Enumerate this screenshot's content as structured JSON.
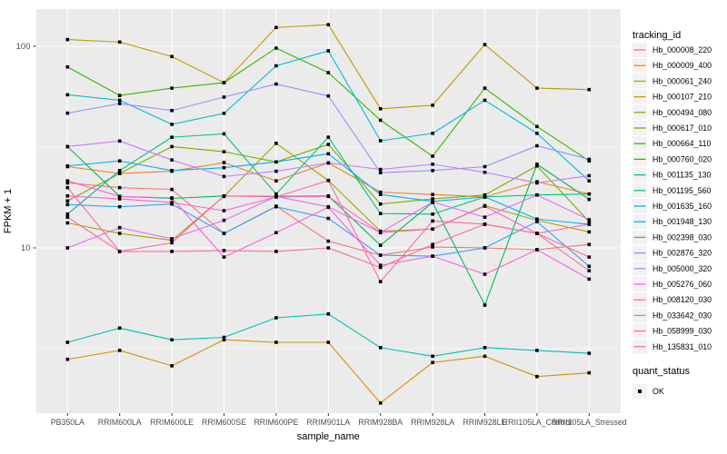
{
  "chart_data": {
    "type": "line",
    "title": "",
    "xlabel": "sample_name",
    "ylabel": "FPKM + 1",
    "y_scale": "log10",
    "y_tick_labels": [
      "100",
      "10"
    ],
    "y_ticks": [
      100,
      10
    ],
    "y_minor_ticks": [
      31.62,
      3.162
    ],
    "ylim": [
      1.5,
      153
    ],
    "grid": true,
    "legend_position": "right",
    "legend_title": "tracking_id",
    "legend2_title": "quant_status",
    "legend2_items": [
      {
        "label": "OK",
        "marker": "square",
        "color": "#000000"
      }
    ],
    "panel_bg": "#EBEBEB",
    "grid_color": "#FFFFFF",
    "axis_text_color": "#4D4D4D",
    "point_color": "#000000",
    "point_shape": "square",
    "categories": [
      "PB350LA",
      "RRIM600LA",
      "RRIM600LE",
      "RRIM600SE",
      "RRIM600PE",
      "RRIM901LA",
      "RRIM928BA",
      "RRIM928LA",
      "RRIM928LE",
      "RRII105LA_Control",
      "RRII105LA_Stressed"
    ],
    "series": [
      {
        "name": "Hb_000008_220",
        "color": "#F8766D",
        "values": [
          21.0,
          19.9,
          19.5,
          11.8,
          16.1,
          10.8,
          9.2,
          10.1,
          10.0,
          9.8,
          10.4
        ]
      },
      {
        "name": "Hb_000009_400",
        "color": "#EA8331",
        "values": [
          25.3,
          23.4,
          24.0,
          26.5,
          21.5,
          26.4,
          18.9,
          18.4,
          17.9,
          21.3,
          18.5
        ]
      },
      {
        "name": "Hb_000061_240",
        "color": "#D89000",
        "values": [
          2.8,
          3.1,
          2.6,
          3.5,
          3.4,
          3.4,
          1.7,
          2.7,
          2.9,
          2.3,
          2.4
        ]
      },
      {
        "name": "Hb_000107_210",
        "color": "#C09B00",
        "values": [
          108,
          105,
          89,
          66,
          124,
          128,
          49,
          51,
          102,
          62,
          61
        ]
      },
      {
        "name": "Hb_000494_080",
        "color": "#A3A500",
        "values": [
          13.3,
          11.8,
          10.9,
          18.0,
          33.0,
          21.6,
          12.1,
          12.4,
          16.2,
          13.7,
          12.0
        ]
      },
      {
        "name": "Hb_000617_010",
        "color": "#7CAE00",
        "values": [
          17.1,
          23.4,
          31.8,
          30.0,
          26.7,
          32.6,
          16.5,
          17.5,
          18.3,
          25.5,
          13.5
        ]
      },
      {
        "name": "Hb_000664_110",
        "color": "#39B600",
        "values": [
          79,
          57,
          62,
          66,
          98,
          74,
          43,
          28.5,
          62,
          40,
          27
        ]
      },
      {
        "name": "Hb_000760_020",
        "color": "#00BB4E",
        "values": [
          31.8,
          18.0,
          17.6,
          18.1,
          18.0,
          18.1,
          10.3,
          16.8,
          5.2,
          26.0,
          17.4
        ]
      },
      {
        "name": "Hb_001135_130",
        "color": "#00C087",
        "values": [
          14.7,
          24.2,
          35.4,
          36.8,
          18.5,
          35.4,
          14.8,
          14.7,
          17.9,
          18.3,
          18.5
        ]
      },
      {
        "name": "Hb_001195_560",
        "color": "#00C0B2",
        "values": [
          3.4,
          4.0,
          3.5,
          3.6,
          4.5,
          4.7,
          3.2,
          2.9,
          3.2,
          3.1,
          3.0
        ]
      },
      {
        "name": "Hb_001635_160",
        "color": "#00BBD6",
        "values": [
          57.5,
          54,
          41,
          46.5,
          80,
          95,
          34,
          37,
          54,
          37,
          21.5
        ]
      },
      {
        "name": "Hb_001948_130",
        "color": "#00B0F0",
        "values": [
          25.5,
          27.0,
          24.2,
          25.0,
          26.7,
          29.3,
          18.4,
          17.0,
          17.9,
          13.9,
          13.1
        ]
      },
      {
        "name": "Hb_002398_030",
        "color": "#35A2FF",
        "values": [
          16.4,
          16.0,
          16.5,
          11.8,
          16.0,
          14.0,
          9.2,
          9.1,
          10.0,
          13.5,
          8.1
        ]
      },
      {
        "name": "Hb_002876_320",
        "color": "#9590FF",
        "values": [
          46.6,
          52,
          48,
          56,
          65,
          56.7,
          23.6,
          24.2,
          25.3,
          32.1,
          27.5
        ]
      },
      {
        "name": "Hb_005000_320",
        "color": "#C77CFF",
        "values": [
          31.8,
          33.9,
          27.3,
          22.6,
          24.0,
          26.4,
          24.5,
          26.0,
          23.7,
          21.0,
          22.8
        ]
      },
      {
        "name": "Hb_005276_060",
        "color": "#E76BF3",
        "values": [
          10.0,
          12.6,
          11.1,
          13.7,
          18.0,
          16.0,
          11.9,
          16.9,
          14.2,
          18.3,
          13.8
        ]
      },
      {
        "name": "Hb_008120_030",
        "color": "#FA62DB",
        "values": [
          21.5,
          18.0,
          17.7,
          9.0,
          11.9,
          15.9,
          8.2,
          9.1,
          7.4,
          9.8,
          7.0
        ]
      },
      {
        "name": "Hb_033642_030",
        "color": "#FF61C9",
        "values": [
          18.1,
          17.5,
          16.8,
          15.3,
          17.9,
          18.0,
          11.9,
          12.4,
          16.1,
          11.8,
          13.1
        ]
      },
      {
        "name": "Hb_058999_030",
        "color": "#FF67A4",
        "values": [
          14.2,
          9.6,
          10.6,
          18.1,
          17.9,
          21.6,
          6.8,
          13.6,
          13.1,
          11.8,
          7.7
        ]
      },
      {
        "name": "Hb_135831_010",
        "color": "#FF6C91",
        "values": [
          19.9,
          9.6,
          9.6,
          9.7,
          9.6,
          10.0,
          8.0,
          10.4,
          13.1,
          11.8,
          9.0
        ]
      }
    ]
  }
}
